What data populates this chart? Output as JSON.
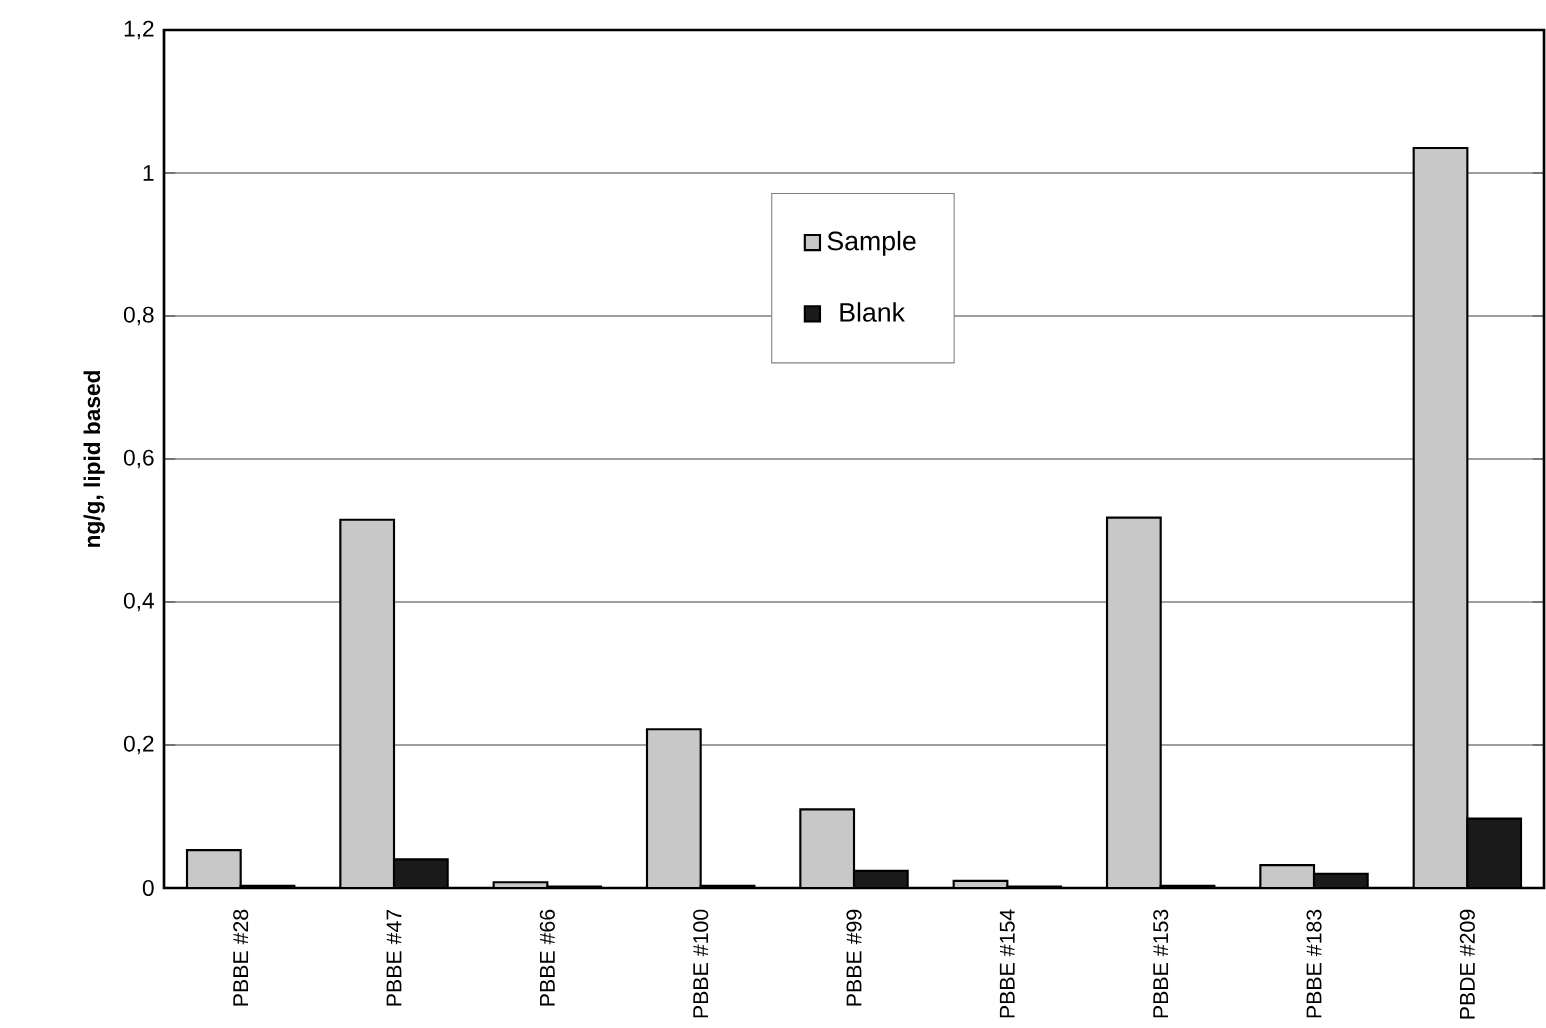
{
  "chart_data": {
    "type": "bar",
    "ylabel": "ng/g, lipid based",
    "categories": [
      "PBBE #28",
      "PBBE #47",
      "PBBE #66",
      "PBBE #100",
      "PBBE #99",
      "PBBE #154",
      "PBBE #153",
      "PBBE #183",
      "PBDE #209"
    ],
    "series": [
      {
        "name": "Sample",
        "color": "#c8c8c8",
        "values": [
          0.053,
          0.515,
          0.008,
          0.222,
          0.11,
          0.01,
          0.518,
          0.032,
          1.035
        ]
      },
      {
        "name": "Blank",
        "color": "#1a1a1a",
        "values": [
          0.003,
          0.04,
          0.002,
          0.003,
          0.024,
          0.002,
          0.003,
          0.02,
          0.097
        ]
      }
    ],
    "ylim": [
      0,
      1.2
    ],
    "yticks": [
      0,
      {
        "value": 0.2,
        "label": "0,2"
      },
      {
        "value": 0.4,
        "label": "0,4"
      },
      {
        "value": 0.6,
        "label": "0,6"
      },
      {
        "value": 0.8,
        "label": "0,8"
      },
      1,
      {
        "value": 1.2,
        "label": "1,2"
      }
    ],
    "grid": "y",
    "legend": "top"
  }
}
